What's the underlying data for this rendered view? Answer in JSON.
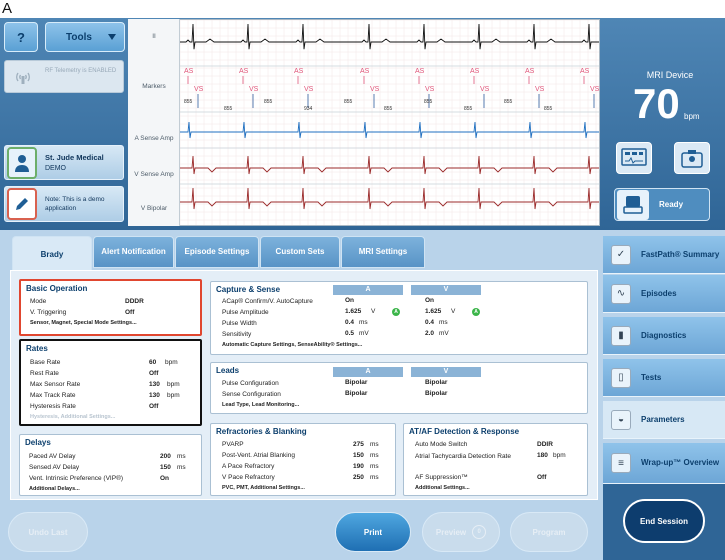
{
  "panel_label": "A",
  "header": {
    "help_label": "?",
    "tools_label": "Tools"
  },
  "telemetry": {
    "text": "RF Telemetry is ENABLED"
  },
  "manufacturer": {
    "name": "St. Jude Medical",
    "sub": "DEMO"
  },
  "note": {
    "text": "Note: This is a demo application"
  },
  "ecg": {
    "labels": [
      "II",
      "Markers",
      "A Sense Amp",
      "V Sense Amp",
      "V Bipolar"
    ],
    "marker_as": "AS",
    "marker_vs": "VS",
    "interval_values": [
      "855",
      "855",
      "855",
      "934",
      "855",
      "855",
      "855",
      "855",
      "855",
      "855"
    ]
  },
  "mri": {
    "title": "MRI Device",
    "value": "70",
    "unit": "bpm",
    "status": "Ready"
  },
  "tabs": [
    {
      "label": "Brady"
    },
    {
      "label": "Alert Notification"
    },
    {
      "label": "Episode Settings"
    },
    {
      "label": "Custom Sets"
    },
    {
      "label": "MRI Settings"
    }
  ],
  "basic_operation": {
    "title": "Basic Operation",
    "rows": [
      {
        "label": "Mode",
        "value": "DDDR"
      },
      {
        "label": "V. Triggering",
        "value": "Off"
      }
    ],
    "link": "Sensor, Magnet, Special Mode Settings..."
  },
  "rates": {
    "title": "Rates",
    "rows": [
      {
        "label": "Base Rate",
        "value": "60",
        "unit": "bpm"
      },
      {
        "label": "Rest Rate",
        "value": "Off",
        "unit": ""
      },
      {
        "label": "Max Sensor Rate",
        "value": "130",
        "unit": "bpm"
      },
      {
        "label": "Max Track Rate",
        "value": "130",
        "unit": "bpm"
      },
      {
        "label": "Hysteresis Rate",
        "value": "Off",
        "unit": ""
      }
    ],
    "link": "Hysteresis, Additional Settings..."
  },
  "delays": {
    "title": "Delays",
    "rows": [
      {
        "label": "Paced AV Delay",
        "value": "200",
        "unit": "ms"
      },
      {
        "label": "Sensed AV Delay",
        "value": "150",
        "unit": "ms"
      },
      {
        "label": "Vent. Intrinsic Preference (VIP®)",
        "value": "On",
        "unit": ""
      }
    ],
    "link": "Additional Delays..."
  },
  "capture_sense": {
    "title": "Capture & Sense",
    "col_a": "A",
    "col_v": "V",
    "rows": [
      {
        "label": "ACap® Confirm/V. AutoCapture",
        "a": "On",
        "a_unit": "",
        "v": "On",
        "v_unit": ""
      },
      {
        "label": "Pulse Amplitude",
        "a": "1.625",
        "a_unit": "V",
        "v": "1.625",
        "v_unit": "V"
      },
      {
        "label": "Pulse Width",
        "a": "0.4",
        "a_unit": "ms",
        "v": "0.4",
        "v_unit": "ms"
      },
      {
        "label": "Sensitivity",
        "a": "0.5",
        "a_unit": "mV",
        "v": "2.0",
        "v_unit": "mV"
      }
    ],
    "badge": "A",
    "link": "Automatic Capture Settings, SenseAbility® Settings..."
  },
  "leads": {
    "title": "Leads",
    "col_a": "A",
    "col_v": "V",
    "rows": [
      {
        "label": "Pulse Configuration",
        "a": "Bipolar",
        "v": "Bipolar"
      },
      {
        "label": "Sense Configuration",
        "a": "Bipolar",
        "v": "Bipolar"
      }
    ],
    "link": "Lead Type, Lead Monitoring..."
  },
  "refractories": {
    "title": "Refractories & Blanking",
    "rows": [
      {
        "label": "PVARP",
        "value": "275",
        "unit": "ms"
      },
      {
        "label": "Post-Vent. Atrial Blanking",
        "value": "150",
        "unit": "ms"
      },
      {
        "label": "A Pace Refractory",
        "value": "190",
        "unit": "ms"
      },
      {
        "label": "V Pace Refractory",
        "value": "250",
        "unit": "ms"
      }
    ],
    "link": "PVC, PMT, Additional Settings..."
  },
  "ataf": {
    "title": "AT/AF Detection & Response",
    "rows": [
      {
        "label": "Auto Mode Switch",
        "value": "DDIR",
        "unit": ""
      },
      {
        "label": "Atrial Tachycardia Detection Rate",
        "value": "180",
        "unit": "bpm"
      },
      {
        "label": "AF Suppression™",
        "value": "Off",
        "unit": ""
      }
    ],
    "link": "Additional Settings..."
  },
  "sidebar": [
    {
      "label": "FastPath® Summary",
      "icon": "check-icon"
    },
    {
      "label": "Episodes",
      "icon": "waveform-icon"
    },
    {
      "label": "Diagnostics",
      "icon": "chart-icon"
    },
    {
      "label": "Tests",
      "icon": "clipboard-icon"
    },
    {
      "label": "Parameters",
      "icon": "device-icon"
    },
    {
      "label": "Wrap-up™ Overview",
      "icon": "list-icon"
    }
  ],
  "footer": {
    "undo_label": "Undo Last",
    "print_label": "Print",
    "preview_label": "Preview",
    "preview_count": "0",
    "program_label": "Program",
    "end_label": "End Session"
  },
  "colors": {
    "accent": "#2f6596",
    "highlight_red": "#e0462f",
    "highlight_black": "#111111",
    "marker_pink": "#e0567a",
    "marker_blue": "#2e5c9e"
  }
}
